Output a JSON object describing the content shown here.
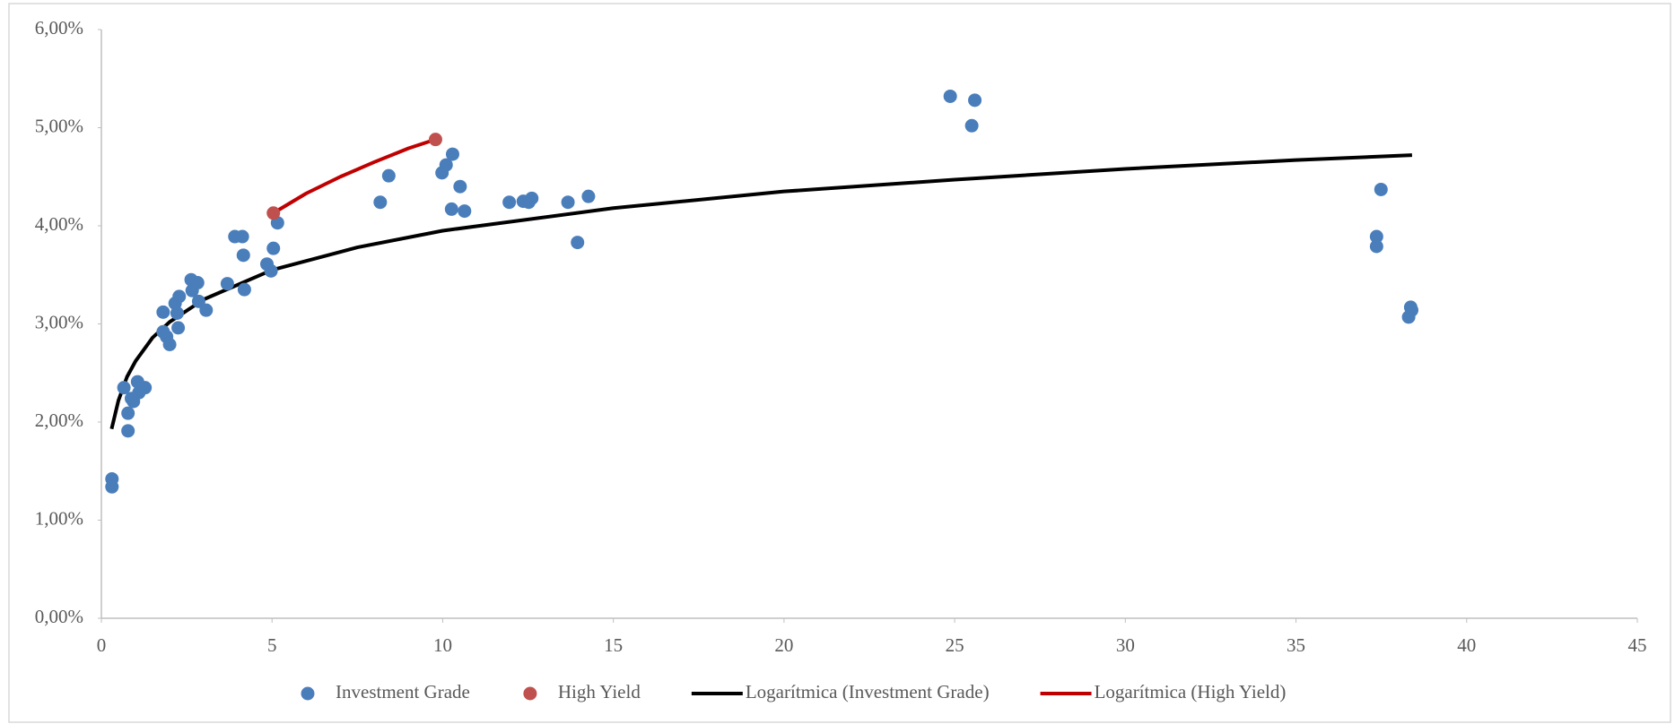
{
  "chart_data": {
    "type": "scatter",
    "xlim": [
      0,
      45
    ],
    "xticks": [
      0,
      5,
      10,
      15,
      20,
      25,
      30,
      35,
      40,
      45
    ],
    "ylim": [
      0,
      6
    ],
    "yticks": [
      {
        "value": 0,
        "label": "0,00%"
      },
      {
        "value": 1,
        "label": "1,00%"
      },
      {
        "value": 2,
        "label": "2,00%"
      },
      {
        "value": 3,
        "label": "3,00%"
      },
      {
        "value": 4,
        "label": "4,00%"
      },
      {
        "value": 5,
        "label": "5,00%"
      },
      {
        "value": 6,
        "label": "6,00%"
      }
    ],
    "legend": "bottom",
    "series": [
      {
        "name": "Investment Grade",
        "type": "scatter",
        "color": "#4a7ebb",
        "x": [
          0.31,
          0.31,
          0.66,
          0.78,
          0.78,
          0.88,
          0.94,
          1.06,
          1.1,
          1.28,
          1.81,
          1.81,
          1.91,
          2.0,
          2.16,
          2.22,
          2.25,
          2.28,
          2.63,
          2.66,
          2.82,
          2.85,
          3.07,
          3.69,
          3.91,
          4.13,
          4.16,
          4.19,
          4.85,
          4.97,
          5.04,
          5.16,
          8.17,
          8.42,
          9.98,
          10.1,
          10.29,
          10.26,
          10.51,
          10.64,
          11.95,
          12.36,
          12.52,
          12.61,
          13.67,
          13.95,
          14.27,
          24.87,
          25.59,
          25.5,
          37.49,
          37.36,
          37.36,
          38.36,
          38.39,
          38.3
        ],
        "values": [
          1.42,
          1.34,
          2.35,
          2.09,
          1.91,
          2.24,
          2.21,
          2.41,
          2.3,
          2.35,
          3.12,
          2.92,
          2.87,
          2.79,
          3.21,
          3.11,
          2.96,
          3.28,
          3.45,
          3.34,
          3.42,
          3.23,
          3.14,
          3.41,
          3.89,
          3.89,
          3.7,
          3.35,
          3.61,
          3.54,
          3.77,
          4.03,
          4.24,
          4.51,
          4.54,
          4.62,
          4.73,
          4.17,
          4.4,
          4.15,
          4.24,
          4.25,
          4.24,
          4.28,
          4.24,
          3.83,
          4.3,
          5.32,
          5.28,
          5.02,
          4.37,
          3.89,
          3.79,
          3.17,
          3.14,
          3.07
        ]
      },
      {
        "name": "High Yield",
        "type": "scatter",
        "color": "#c0504d",
        "x": [
          5.04,
          9.79
        ],
        "values": [
          4.13,
          4.88
        ]
      },
      {
        "name": "Logarítmica (Investment Grade)",
        "type": "line",
        "color": "#000000",
        "x": [
          0.3,
          0.5,
          0.75,
          1,
          1.5,
          2,
          3,
          5,
          7.5,
          10,
          15,
          20,
          25,
          30,
          35,
          38.4
        ],
        "values": [
          1.93,
          2.22,
          2.46,
          2.62,
          2.86,
          3.02,
          3.25,
          3.55,
          3.78,
          3.95,
          4.18,
          4.35,
          4.47,
          4.58,
          4.67,
          4.72
        ]
      },
      {
        "name": "Logarítmica (High Yield)",
        "type": "line",
        "color": "#c00000",
        "x": [
          5.04,
          6,
          7,
          8,
          9,
          9.79
        ],
        "values": [
          4.13,
          4.33,
          4.5,
          4.65,
          4.79,
          4.88
        ]
      }
    ]
  }
}
